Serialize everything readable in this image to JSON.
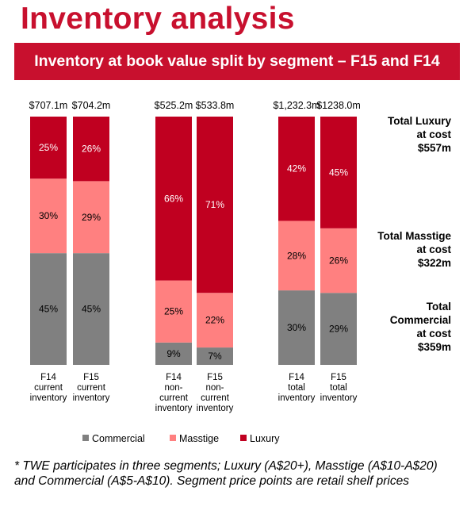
{
  "page": {
    "title": "Inventory analysis",
    "banner": "Inventory at book value split by segment – F15 and F14",
    "footnote": "* TWE participates in three segments; Luxury (A$20+), Masstige (A$10-A$20) and Commercial (A$5-A$10). Segment price points are retail shelf prices"
  },
  "side_labels": {
    "luxury": "Total Luxury\nat cost\n$557m",
    "masstige": "Total Masstige\nat cost\n$322m",
    "commercial": "Total\nCommercial\nat cost\n$359m"
  },
  "chart_data": {
    "type": "bar",
    "stacked": true,
    "normalized": "percent",
    "categories": [
      "F14\ncurrent\ninventory",
      "F15\ncurrent\ninventory",
      "F14\nnon-\ncurrent\ninventory",
      "F15\nnon-\ncurrent\ninventory",
      "F14\ntotal\ninventory",
      "F15\ntotal\ninventory"
    ],
    "totals": [
      "$707.1m",
      "$704.2m",
      "$525.2m",
      "$533.8m",
      "$1,232.3m",
      "$1238.0m"
    ],
    "series": [
      {
        "name": "Commercial",
        "color": "#808080",
        "values": [
          45,
          45,
          9,
          7,
          30,
          29
        ],
        "labels": [
          "45%",
          "45%",
          "9%",
          "7%",
          "30%",
          "29%"
        ]
      },
      {
        "name": "Masstige",
        "color": "#ff8080",
        "values": [
          30,
          29,
          25,
          22,
          28,
          26
        ],
        "labels": [
          "30%",
          "29%",
          "25%",
          "22%",
          "28%",
          "26%"
        ]
      },
      {
        "name": "Luxury",
        "color": "#c00020",
        "values": [
          25,
          26,
          66,
          71,
          42,
          45
        ],
        "labels": [
          "25%",
          "26%",
          "66%",
          "71%",
          "42%",
          "45%"
        ]
      }
    ],
    "ylim": [
      0,
      100
    ],
    "grid": false,
    "legend_position": "bottom"
  }
}
